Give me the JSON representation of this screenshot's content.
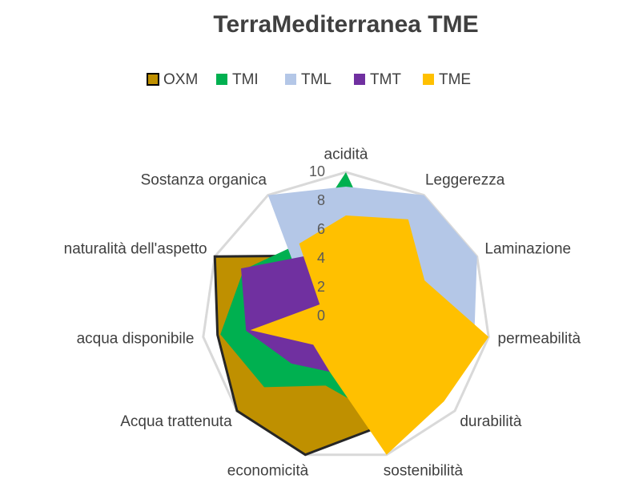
{
  "chart_data": {
    "type": "radar",
    "title": "TerraMediterranea TME",
    "categories": [
      "acidità",
      "Leggerezza",
      "Laminazione",
      "permeabilità",
      "durabilità",
      "sostenibilità",
      "economicità",
      "Acqua trattenuta",
      "acqua disponibile",
      "naturalità dell'aspetto",
      "Sostanza organica"
    ],
    "series": [
      {
        "name": "OXM",
        "color": "#bf9000",
        "values": [
          3,
          3,
          3,
          5,
          6,
          8,
          10,
          10,
          9,
          10,
          5
        ]
      },
      {
        "name": "TMI",
        "color": "#00b050",
        "values": [
          10,
          5,
          5,
          6,
          6,
          7,
          5,
          7.5,
          8.8,
          7.8,
          6
        ]
      },
      {
        "name": "TML",
        "color": "#b4c7e7",
        "values": [
          9,
          10,
          10,
          9,
          6,
          5,
          3,
          3,
          4,
          3,
          10
        ]
      },
      {
        "name": "TMT",
        "color": "#7030a0",
        "values": [
          4,
          3,
          3,
          4,
          5,
          5,
          4,
          5,
          7,
          8,
          5
        ]
      },
      {
        "name": "TME",
        "color": "#ffc000",
        "values": [
          7,
          8,
          6,
          10,
          9,
          10,
          4,
          3,
          6.7,
          2,
          6
        ]
      }
    ],
    "rlim": [
      0,
      10
    ],
    "rticks": [
      0,
      2,
      4,
      6,
      8,
      10
    ],
    "legend": "top"
  }
}
